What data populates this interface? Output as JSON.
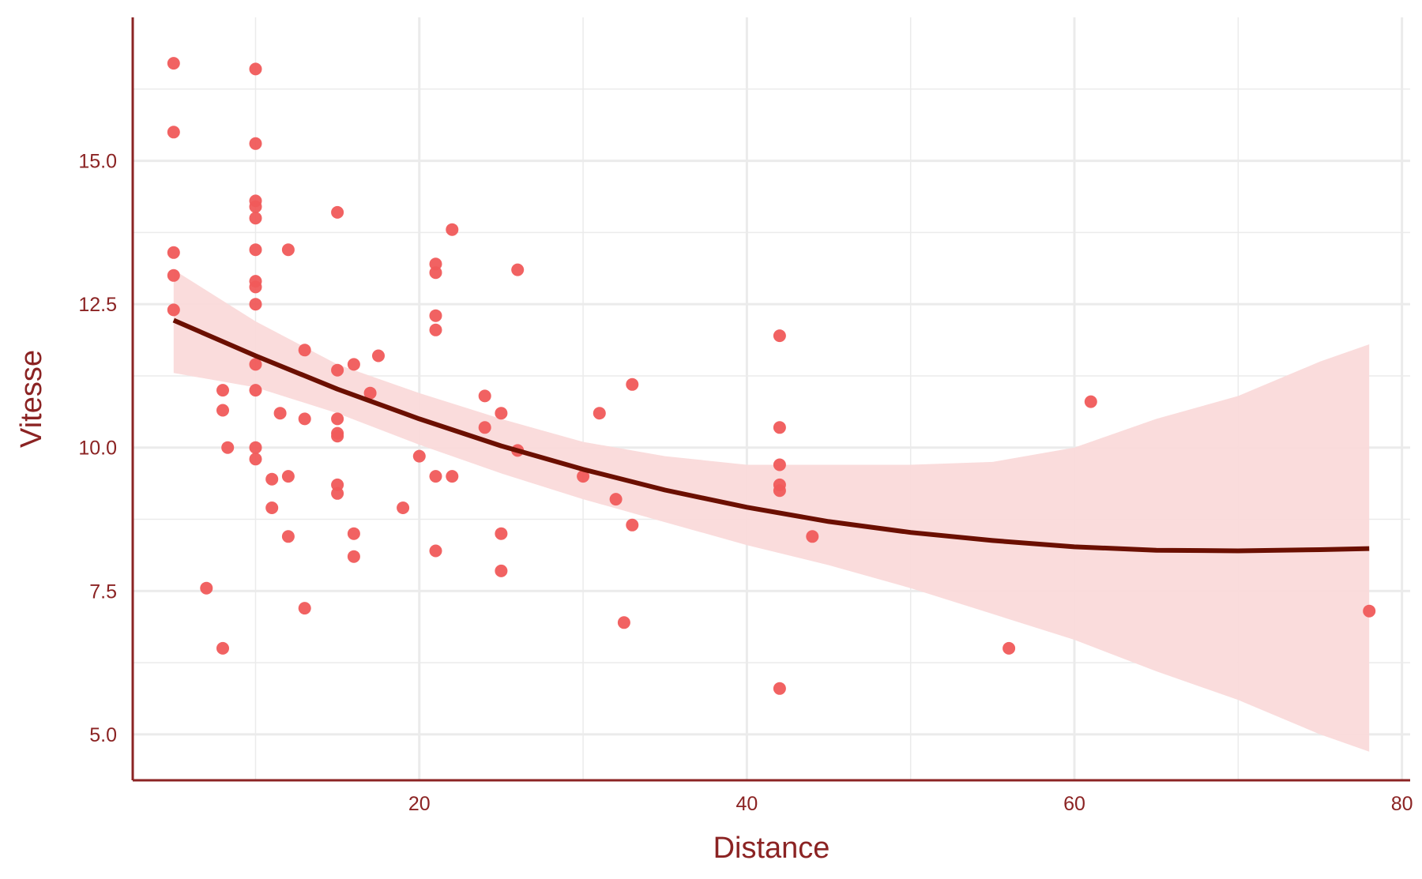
{
  "chart_data": {
    "type": "scatter",
    "title": "",
    "xlabel": "Distance",
    "ylabel": "Vitesse",
    "xlim": [
      2.5,
      80.5
    ],
    "ylim": [
      4.2,
      17.5
    ],
    "x_ticks": [
      20,
      40,
      60,
      80
    ],
    "x_tick_labels": [
      "20",
      "40",
      "60",
      "80"
    ],
    "y_ticks": [
      5,
      7.5,
      10,
      12.5,
      15
    ],
    "y_tick_labels": [
      "5.0",
      "7.5",
      "10.0",
      "12.5",
      "15.0"
    ],
    "grid": true,
    "legend": "none",
    "colors": {
      "points": "#F05A5A",
      "fit_line": "#6B0F00",
      "ribbon": "#FADADA",
      "axis": "#8B2323",
      "grid": "#EBEBEB"
    },
    "points": [
      [
        5,
        16.7
      ],
      [
        5,
        15.5
      ],
      [
        5,
        13.4
      ],
      [
        5,
        13.0
      ],
      [
        5,
        12.4
      ],
      [
        10,
        16.6
      ],
      [
        10,
        15.3
      ],
      [
        10,
        14.3
      ],
      [
        10,
        14.2
      ],
      [
        10,
        14.0
      ],
      [
        10,
        13.45
      ],
      [
        10,
        12.9
      ],
      [
        10,
        12.8
      ],
      [
        10,
        12.5
      ],
      [
        10,
        11.45
      ],
      [
        10,
        11.0
      ],
      [
        10,
        10.0
      ],
      [
        10,
        9.8
      ],
      [
        7,
        7.55
      ],
      [
        8,
        11.0
      ],
      [
        8,
        10.65
      ],
      [
        8,
        6.5
      ],
      [
        8.3,
        10.0
      ],
      [
        11,
        9.45
      ],
      [
        11,
        8.95
      ],
      [
        11.5,
        10.6
      ],
      [
        12,
        13.45
      ],
      [
        12,
        9.5
      ],
      [
        12,
        8.45
      ],
      [
        13,
        11.7
      ],
      [
        13,
        10.5
      ],
      [
        13,
        7.2
      ],
      [
        15,
        14.1
      ],
      [
        15,
        11.35
      ],
      [
        15,
        10.5
      ],
      [
        15,
        10.25
      ],
      [
        15,
        10.2
      ],
      [
        15,
        9.35
      ],
      [
        15,
        9.2
      ],
      [
        16,
        11.45
      ],
      [
        16,
        8.5
      ],
      [
        16,
        8.1
      ],
      [
        17,
        10.95
      ],
      [
        17.5,
        11.6
      ],
      [
        19,
        8.95
      ],
      [
        20,
        9.85
      ],
      [
        21,
        13.2
      ],
      [
        21,
        13.05
      ],
      [
        21,
        12.3
      ],
      [
        21,
        12.05
      ],
      [
        21,
        9.5
      ],
      [
        21,
        8.2
      ],
      [
        22,
        13.8
      ],
      [
        22,
        9.5
      ],
      [
        24,
        10.9
      ],
      [
        24,
        10.35
      ],
      [
        25,
        10.6
      ],
      [
        25,
        8.5
      ],
      [
        25,
        7.85
      ],
      [
        26,
        13.1
      ],
      [
        26,
        9.95
      ],
      [
        30,
        9.5
      ],
      [
        31,
        10.6
      ],
      [
        32,
        9.1
      ],
      [
        32.5,
        6.95
      ],
      [
        33,
        11.1
      ],
      [
        33,
        8.65
      ],
      [
        42,
        11.95
      ],
      [
        42,
        10.35
      ],
      [
        42,
        9.7
      ],
      [
        42,
        9.35
      ],
      [
        42,
        9.25
      ],
      [
        42,
        5.8
      ],
      [
        44,
        8.45
      ],
      [
        56,
        6.5
      ],
      [
        61,
        10.8
      ],
      [
        78,
        7.15
      ]
    ],
    "fit": {
      "method": "quadratic",
      "x": [
        5,
        10,
        15,
        20,
        25,
        30,
        35,
        40,
        45,
        50,
        55,
        60,
        65,
        70,
        75,
        78
      ],
      "y": [
        12.22,
        11.6,
        11.02,
        10.5,
        10.03,
        9.62,
        9.26,
        8.96,
        8.71,
        8.52,
        8.38,
        8.27,
        8.21,
        8.2,
        8.22,
        8.24
      ],
      "lower": [
        11.3,
        11.05,
        10.6,
        10.05,
        9.55,
        9.1,
        8.7,
        8.3,
        7.95,
        7.55,
        7.1,
        6.65,
        6.1,
        5.6,
        5.0,
        4.7
      ],
      "upper": [
        13.1,
        12.2,
        11.45,
        10.95,
        10.5,
        10.1,
        9.85,
        9.7,
        9.7,
        9.7,
        9.75,
        10.0,
        10.5,
        10.9,
        11.5,
        11.8
      ]
    }
  }
}
